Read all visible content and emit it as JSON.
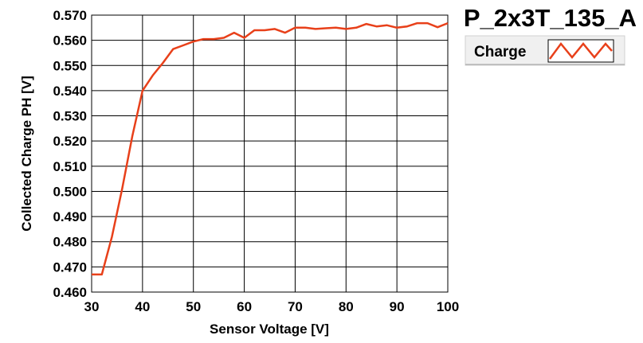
{
  "chart_data": {
    "type": "line",
    "title": "P_2x3T_135_A",
    "xlabel": "Sensor Voltage [V]",
    "ylabel": "Collected Charge PH [V]",
    "xlim": [
      30,
      100
    ],
    "ylim": [
      0.46,
      0.57
    ],
    "x_ticks": [
      30,
      40,
      50,
      60,
      70,
      80,
      90,
      100
    ],
    "y_ticks": [
      0.46,
      0.47,
      0.48,
      0.49,
      0.5,
      0.51,
      0.52,
      0.53,
      0.54,
      0.55,
      0.56,
      0.57
    ],
    "x_tick_labels": [
      "30",
      "40",
      "50",
      "60",
      "70",
      "80",
      "90",
      "100"
    ],
    "y_tick_labels": [
      "0.460",
      "0.470",
      "0.480",
      "0.490",
      "0.500",
      "0.510",
      "0.520",
      "0.530",
      "0.540",
      "0.550",
      "0.560",
      "0.570"
    ],
    "grid": true,
    "legend_position": "top-right",
    "series": [
      {
        "name": "Charge",
        "color": "#e8401a",
        "x": [
          30,
          32,
          34,
          36,
          38,
          40,
          42,
          44,
          46,
          48,
          50,
          52,
          54,
          56,
          58,
          60,
          62,
          64,
          66,
          68,
          70,
          72,
          74,
          76,
          78,
          80,
          82,
          84,
          86,
          88,
          90,
          92,
          94,
          96,
          98,
          100
        ],
        "y": [
          0.467,
          0.467,
          0.482,
          0.501,
          0.522,
          0.54,
          0.546,
          0.551,
          0.5565,
          0.558,
          0.5595,
          0.5605,
          0.5605,
          0.561,
          0.563,
          0.561,
          0.564,
          0.564,
          0.5645,
          0.563,
          0.565,
          0.565,
          0.5645,
          0.5648,
          0.565,
          0.5645,
          0.565,
          0.5665,
          0.5655,
          0.566,
          0.565,
          0.5655,
          0.5668,
          0.5668,
          0.5652,
          0.5668
        ]
      }
    ]
  }
}
